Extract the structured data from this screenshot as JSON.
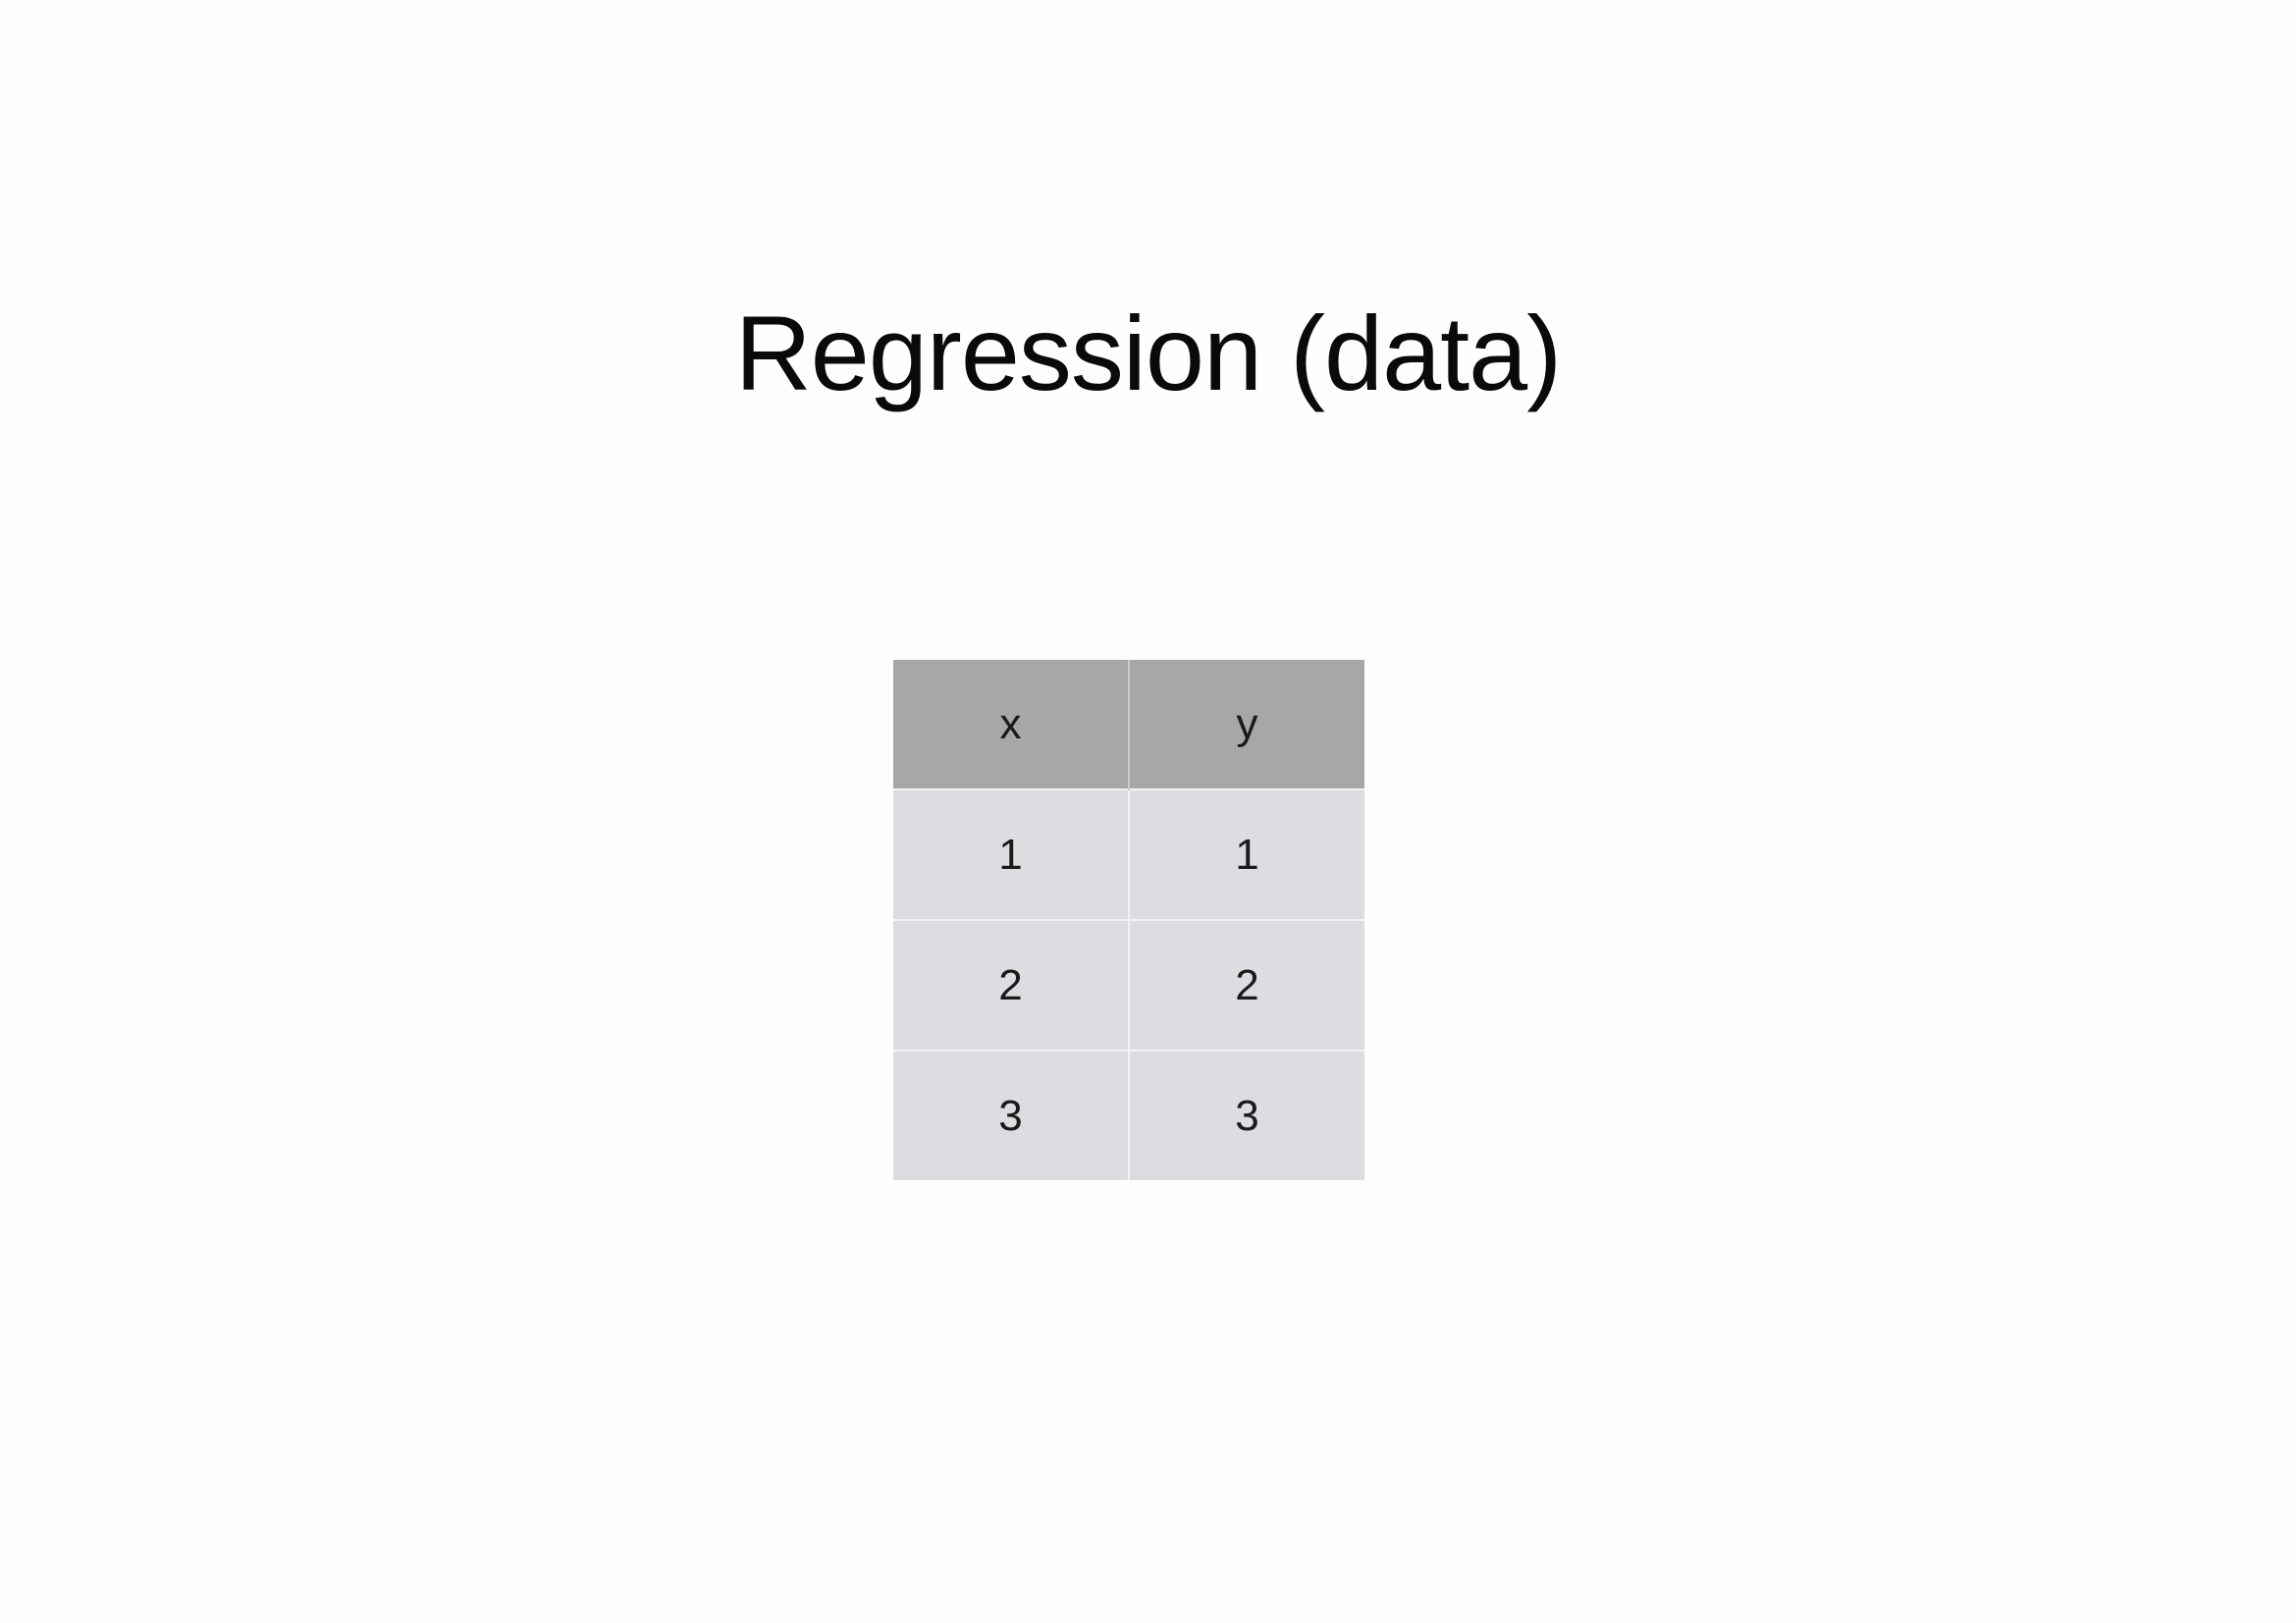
{
  "slide": {
    "title": "Regression (data)"
  },
  "table": {
    "columns": [
      "x",
      "y"
    ],
    "rows": [
      [
        "1",
        "1"
      ],
      [
        "2",
        "2"
      ],
      [
        "3",
        "3"
      ]
    ]
  },
  "colors": {
    "background": "#fefefe",
    "header_fill": "#a5a8a7",
    "cell_fill": "#dcdde0",
    "text": "#0a0a0a"
  }
}
